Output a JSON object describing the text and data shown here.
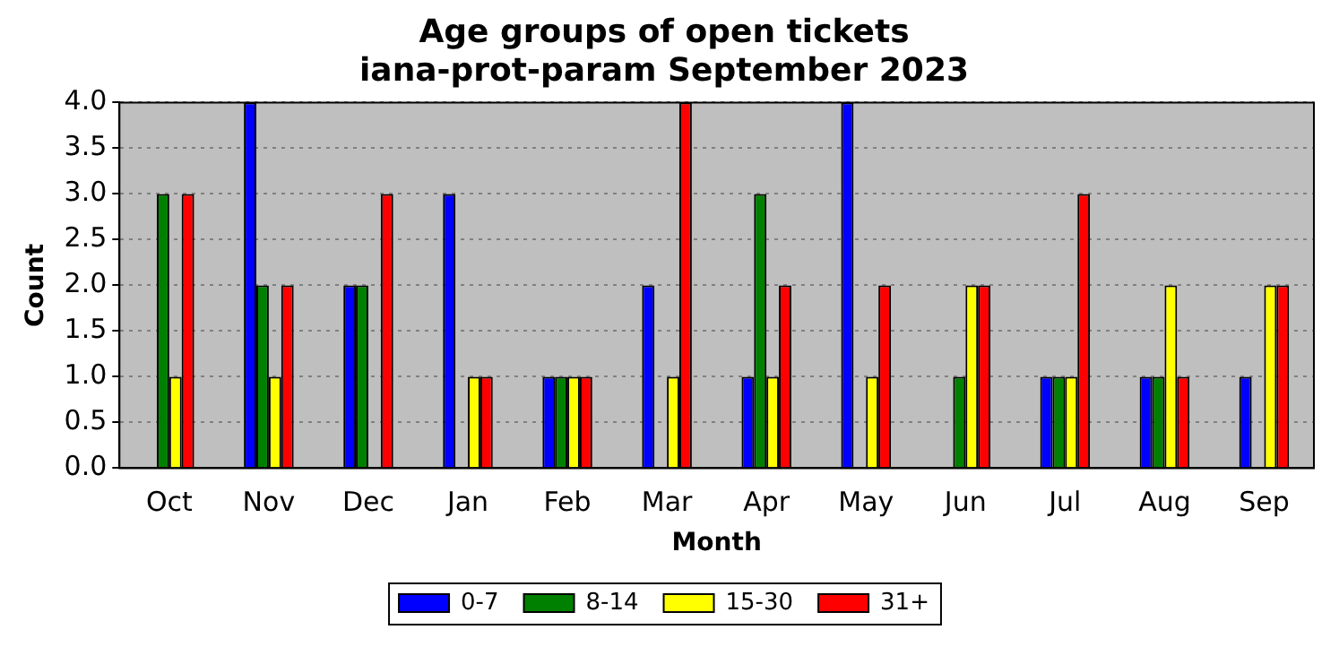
{
  "chart_data": {
    "type": "bar",
    "title": "Age groups of open tickets",
    "subtitle": "iana-prot-param September 2023",
    "xlabel": "Month",
    "ylabel": "Count",
    "categories": [
      "Oct",
      "Nov",
      "Dec",
      "Jan",
      "Feb",
      "Mar",
      "Apr",
      "May",
      "Jun",
      "Jul",
      "Aug",
      "Sep"
    ],
    "series": [
      {
        "name": "0-7",
        "color": "#0000ff",
        "values": [
          0,
          4,
          2,
          3,
          1,
          2,
          1,
          4,
          0,
          1,
          1,
          1
        ]
      },
      {
        "name": "8-14",
        "color": "#008000",
        "values": [
          3,
          2,
          2,
          0,
          1,
          0,
          3,
          0,
          1,
          1,
          1,
          0
        ]
      },
      {
        "name": "15-30",
        "color": "#ffff00",
        "values": [
          1,
          1,
          0,
          1,
          1,
          1,
          1,
          1,
          2,
          1,
          2,
          2
        ]
      },
      {
        "name": "31+",
        "color": "#ff0000",
        "values": [
          3,
          2,
          3,
          1,
          1,
          4,
          2,
          2,
          2,
          3,
          1,
          2
        ]
      }
    ],
    "ylim": [
      0,
      4
    ],
    "yticks": [
      {
        "value": 0,
        "label": "0.0"
      },
      {
        "value": 0.5,
        "label": "0.5"
      },
      {
        "value": 1,
        "label": "1.0"
      },
      {
        "value": 1.5,
        "label": "1.5"
      },
      {
        "value": 2,
        "label": "2.0"
      },
      {
        "value": 2.5,
        "label": "2.5"
      },
      {
        "value": 3,
        "label": "3.0"
      },
      {
        "value": 3.5,
        "label": "3.5"
      },
      {
        "value": 4,
        "label": "4.0"
      }
    ],
    "grid": "y",
    "legend": "bottom"
  }
}
